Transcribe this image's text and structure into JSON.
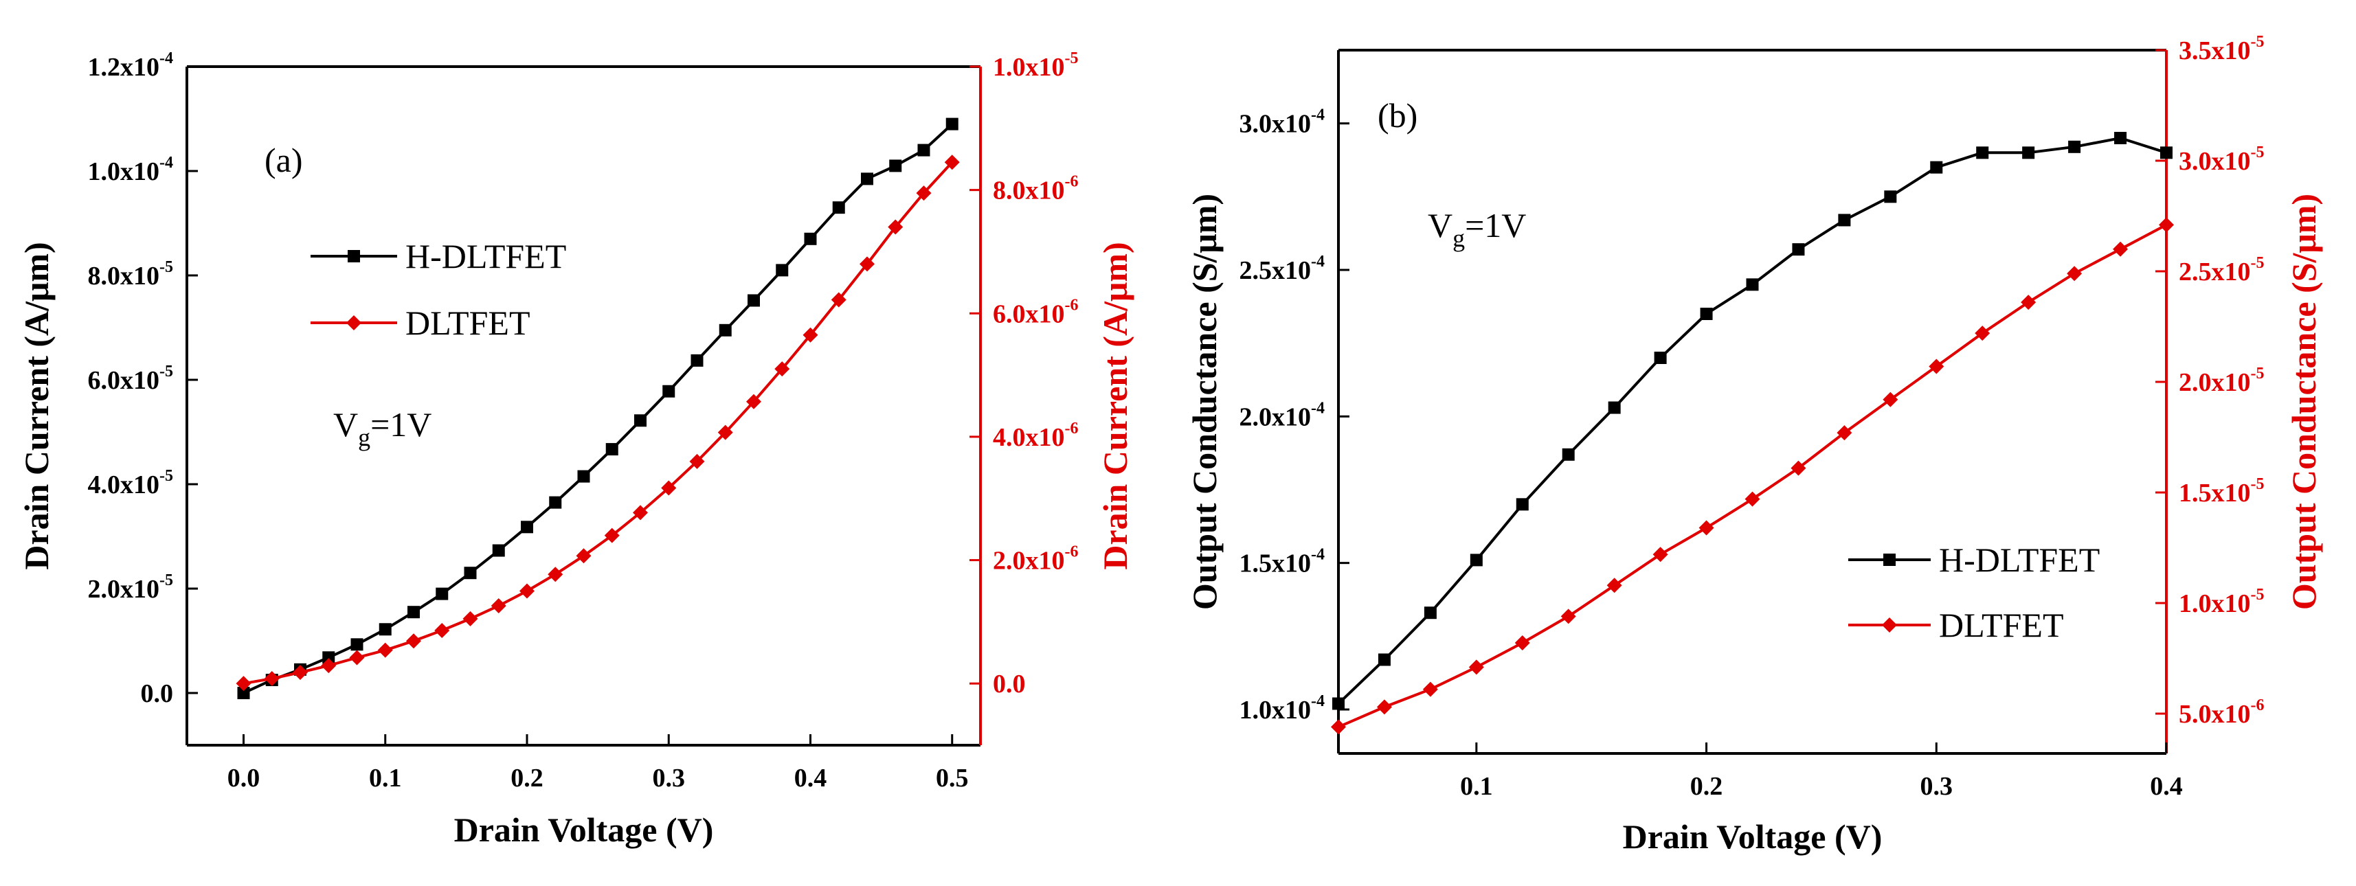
{
  "colors": {
    "black_series": "#000000",
    "red_series": "#e00000",
    "frame": "#000000"
  },
  "chart_data": [
    {
      "panel_label": "(a)",
      "type": "line",
      "xlabel": "Drain Voltage (V)",
      "ylabel_left": "Drain Current (A/μm)",
      "ylabel_right": "Drain Current (A/μm)",
      "xlim": [
        -0.04,
        0.52
      ],
      "ylim_left": [
        -1e-05,
        0.00012
      ],
      "ylim_right": [
        -1e-06,
        1e-05
      ],
      "x_ticks": [
        {
          "value": 0.0,
          "label": "0.0"
        },
        {
          "value": 0.1,
          "label": "0.1"
        },
        {
          "value": 0.2,
          "label": "0.2"
        },
        {
          "value": 0.3,
          "label": "0.3"
        },
        {
          "value": 0.4,
          "label": "0.4"
        },
        {
          "value": 0.5,
          "label": "0.5"
        }
      ],
      "y_left_ticks": [
        {
          "value": 0.0,
          "mantissa": "0.0",
          "exp": ""
        },
        {
          "value": 2e-05,
          "mantissa": "2.0x10",
          "exp": "-5"
        },
        {
          "value": 4e-05,
          "mantissa": "4.0x10",
          "exp": "-5"
        },
        {
          "value": 6e-05,
          "mantissa": "6.0x10",
          "exp": "-5"
        },
        {
          "value": 8e-05,
          "mantissa": "8.0x10",
          "exp": "-5"
        },
        {
          "value": 0.0001,
          "mantissa": "1.0x10",
          "exp": "-4"
        },
        {
          "value": 0.00012,
          "mantissa": "1.2x10",
          "exp": "-4"
        }
      ],
      "y_right_ticks": [
        {
          "value": 0.0,
          "mantissa": "0.0",
          "exp": ""
        },
        {
          "value": 2e-06,
          "mantissa": "2.0x10",
          "exp": "-6"
        },
        {
          "value": 4e-06,
          "mantissa": "4.0x10",
          "exp": "-6"
        },
        {
          "value": 6e-06,
          "mantissa": "6.0x10",
          "exp": "-6"
        },
        {
          "value": 8e-06,
          "mantissa": "8.0x10",
          "exp": "-6"
        },
        {
          "value": 1e-05,
          "mantissa": "1.0x10",
          "exp": "-5"
        }
      ],
      "annotation": {
        "main": "V",
        "sub": "g",
        "rest": "=1V"
      },
      "series": [
        {
          "name": "H-DLTFET",
          "color": "#000000",
          "marker": "square",
          "axis": "left",
          "x": [
            0.0,
            0.02,
            0.04,
            0.06,
            0.08,
            0.1,
            0.12,
            0.14,
            0.16,
            0.18,
            0.2,
            0.22,
            0.24,
            0.26,
            0.28,
            0.3,
            0.32,
            0.34,
            0.36,
            0.38,
            0.4,
            0.42,
            0.44,
            0.46,
            0.48,
            0.5
          ],
          "y": [
            0.0,
            2.5e-06,
            4.5e-06,
            6.8e-06,
            9.3e-06,
            1.22e-05,
            1.55e-05,
            1.9e-05,
            2.3e-05,
            2.73e-05,
            3.18e-05,
            3.65e-05,
            4.15e-05,
            4.67e-05,
            5.22e-05,
            5.78e-05,
            6.37e-05,
            6.95e-05,
            7.52e-05,
            8.1e-05,
            8.7e-05,
            9.3e-05,
            9.85e-05,
            0.000101,
            0.000104,
            0.000109
          ]
        },
        {
          "name": "DLTFET",
          "color": "#e00000",
          "marker": "diamond",
          "axis": "right",
          "x": [
            0.0,
            0.02,
            0.04,
            0.06,
            0.08,
            0.1,
            0.12,
            0.14,
            0.16,
            0.18,
            0.2,
            0.22,
            0.24,
            0.26,
            0.28,
            0.3,
            0.32,
            0.34,
            0.36,
            0.38,
            0.4,
            0.42,
            0.44,
            0.46,
            0.48,
            0.5
          ],
          "y": [
            0.0,
            8e-08,
            1.8e-07,
            2.9e-07,
            4.2e-07,
            5.4e-07,
            6.9e-07,
            8.6e-07,
            1.05e-06,
            1.26e-06,
            1.5e-06,
            1.77e-06,
            2.07e-06,
            2.4e-06,
            2.77e-06,
            3.17e-06,
            3.6e-06,
            4.07e-06,
            4.57e-06,
            5.1e-06,
            5.65e-06,
            6.22e-06,
            6.8e-06,
            7.4e-06,
            7.95e-06,
            8.45e-06
          ]
        }
      ]
    },
    {
      "panel_label": "(b)",
      "type": "line",
      "xlabel": "Drain Voltage (V)",
      "ylabel_left": "Output Conductance (S/μm)",
      "ylabel_right": "Output Conductance (S/μm)",
      "xlim": [
        0.04,
        0.4
      ],
      "ylim_left": [
        8.5e-05,
        0.000325
      ],
      "ylim_right": [
        3.2e-06,
        3.5e-05
      ],
      "x_ticks": [
        {
          "value": 0.1,
          "label": "0.1"
        },
        {
          "value": 0.2,
          "label": "0.2"
        },
        {
          "value": 0.3,
          "label": "0.3"
        },
        {
          "value": 0.4,
          "label": "0.4"
        }
      ],
      "y_left_ticks": [
        {
          "value": 0.0001,
          "mantissa": "1.0x10",
          "exp": "-4"
        },
        {
          "value": 0.00015,
          "mantissa": "1.5x10",
          "exp": "-4"
        },
        {
          "value": 0.0002,
          "mantissa": "2.0x10",
          "exp": "-4"
        },
        {
          "value": 0.00025,
          "mantissa": "2.5x10",
          "exp": "-4"
        },
        {
          "value": 0.0003,
          "mantissa": "3.0x10",
          "exp": "-4"
        }
      ],
      "y_right_ticks": [
        {
          "value": 5e-06,
          "mantissa": "5.0x10",
          "exp": "-6"
        },
        {
          "value": 1e-05,
          "mantissa": "1.0x10",
          "exp": "-5"
        },
        {
          "value": 1.5e-05,
          "mantissa": "1.5x10",
          "exp": "-5"
        },
        {
          "value": 2e-05,
          "mantissa": "2.0x10",
          "exp": "-5"
        },
        {
          "value": 2.5e-05,
          "mantissa": "2.5x10",
          "exp": "-5"
        },
        {
          "value": 3e-05,
          "mantissa": "3.0x10",
          "exp": "-5"
        },
        {
          "value": 3.5e-05,
          "mantissa": "3.5x10",
          "exp": "-5"
        }
      ],
      "annotation": {
        "main": "V",
        "sub": "g",
        "rest": "=1V"
      },
      "series": [
        {
          "name": "H-DLTFET",
          "color": "#000000",
          "marker": "square",
          "axis": "left",
          "x": [
            0.04,
            0.06,
            0.08,
            0.1,
            0.12,
            0.14,
            0.16,
            0.18,
            0.2,
            0.22,
            0.24,
            0.26,
            0.28,
            0.3,
            0.32,
            0.34,
            0.36,
            0.38,
            0.4
          ],
          "y": [
            0.000102,
            0.000117,
            0.000133,
            0.000151,
            0.00017,
            0.000187,
            0.000203,
            0.00022,
            0.000235,
            0.000245,
            0.000257,
            0.000267,
            0.000275,
            0.000285,
            0.00029,
            0.00029,
            0.000292,
            0.000295,
            0.00029
          ]
        },
        {
          "name": "DLTFET",
          "color": "#e00000",
          "marker": "diamond",
          "axis": "right",
          "x": [
            0.04,
            0.06,
            0.08,
            0.1,
            0.12,
            0.14,
            0.16,
            0.18,
            0.2,
            0.22,
            0.24,
            0.26,
            0.28,
            0.3,
            0.32,
            0.34,
            0.36,
            0.38,
            0.4
          ],
          "y": [
            4.4e-06,
            5.3e-06,
            6.1e-06,
            7.1e-06,
            8.2e-06,
            9.4e-06,
            1.08e-05,
            1.22e-05,
            1.34e-05,
            1.47e-05,
            1.61e-05,
            1.77e-05,
            1.92e-05,
            2.07e-05,
            2.22e-05,
            2.36e-05,
            2.49e-05,
            2.6e-05,
            2.71e-05
          ]
        }
      ]
    }
  ]
}
